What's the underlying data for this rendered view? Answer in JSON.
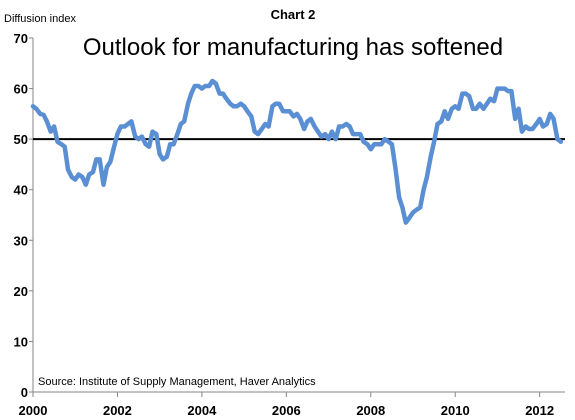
{
  "chart_data": {
    "type": "line",
    "label": "Chart 2",
    "title": "Outlook for manufacturing has softened",
    "ylabel": "Diffusion index",
    "source": "Source: Institute of Supply Management, Haver Analytics",
    "ylim": [
      0,
      70
    ],
    "yticks": [
      0,
      10,
      20,
      30,
      40,
      50,
      60,
      70
    ],
    "xlim": [
      2000,
      2012.6
    ],
    "xticks": [
      2000,
      2002,
      2004,
      2006,
      2008,
      2010,
      2012
    ],
    "reference_line": 50,
    "series_color": "#5B8FD4",
    "reference_color": "#000000",
    "grid": false,
    "series": [
      {
        "x": [
          2000.0,
          2000.08,
          2000.17,
          2000.25,
          2000.33,
          2000.42,
          2000.5,
          2000.58,
          2000.67,
          2000.75,
          2000.83,
          2000.92,
          2001.0,
          2001.08,
          2001.17,
          2001.25,
          2001.33,
          2001.42,
          2001.5,
          2001.58,
          2001.67,
          2001.75,
          2001.83,
          2001.92,
          2002.0,
          2002.08,
          2002.17,
          2002.25,
          2002.33,
          2002.42,
          2002.5,
          2002.58,
          2002.67,
          2002.75,
          2002.83,
          2002.92,
          2003.0,
          2003.08,
          2003.17,
          2003.25,
          2003.33,
          2003.42,
          2003.5,
          2003.58,
          2003.67,
          2003.75,
          2003.83,
          2003.92,
          2004.0,
          2004.08,
          2004.17,
          2004.25,
          2004.33,
          2004.42,
          2004.5,
          2004.58,
          2004.67,
          2004.75,
          2004.83,
          2004.92,
          2005.0,
          2005.08,
          2005.17,
          2005.25,
          2005.33,
          2005.42,
          2005.5,
          2005.58,
          2005.67,
          2005.75,
          2005.83,
          2005.92,
          2006.0,
          2006.08,
          2006.17,
          2006.25,
          2006.33,
          2006.42,
          2006.5,
          2006.58,
          2006.67,
          2006.75,
          2006.83,
          2006.92,
          2007.0,
          2007.08,
          2007.17,
          2007.25,
          2007.33,
          2007.42,
          2007.5,
          2007.58,
          2007.67,
          2007.75,
          2007.83,
          2007.92,
          2008.0,
          2008.08,
          2008.17,
          2008.25,
          2008.33,
          2008.42,
          2008.5,
          2008.58,
          2008.67,
          2008.75,
          2008.83,
          2008.92,
          2009.0,
          2009.08,
          2009.17,
          2009.25,
          2009.33,
          2009.42,
          2009.5,
          2009.58,
          2009.67,
          2009.75,
          2009.83,
          2009.92,
          2010.0,
          2010.08,
          2010.17,
          2010.25,
          2010.33,
          2010.42,
          2010.5,
          2010.58,
          2010.67,
          2010.75,
          2010.83,
          2010.92,
          2011.0,
          2011.08,
          2011.17,
          2011.25,
          2011.33,
          2011.42,
          2011.5,
          2011.58,
          2011.67,
          2011.75,
          2011.83,
          2011.92,
          2012.0,
          2012.08,
          2012.17,
          2012.25,
          2012.33,
          2012.42,
          2012.5
        ],
        "values": [
          56.5,
          56.0,
          55.0,
          54.8,
          53.5,
          51.5,
          52.5,
          49.5,
          49.0,
          48.5,
          44.0,
          42.5,
          42.0,
          43.0,
          42.5,
          41.0,
          43.0,
          43.5,
          46.0,
          46.0,
          41.0,
          44.5,
          45.5,
          48.5,
          51.0,
          52.5,
          52.5,
          53.0,
          53.5,
          50.5,
          50.0,
          50.5,
          49.0,
          48.5,
          51.5,
          51.0,
          47.0,
          46.0,
          46.5,
          49.0,
          49.0,
          51.0,
          53.0,
          53.5,
          57.0,
          59.0,
          60.5,
          60.5,
          60.0,
          60.5,
          60.5,
          61.5,
          61.0,
          59.0,
          59.0,
          58.0,
          57.0,
          56.5,
          56.5,
          57.0,
          56.5,
          55.5,
          54.5,
          51.5,
          51.0,
          52.0,
          53.0,
          52.5,
          56.5,
          57.0,
          57.0,
          55.5,
          55.5,
          55.5,
          54.5,
          55.0,
          54.0,
          52.0,
          53.5,
          54.0,
          52.5,
          51.5,
          50.5,
          51.0,
          50.0,
          51.5,
          50.0,
          52.5,
          52.5,
          53.0,
          52.5,
          51.0,
          51.0,
          51.0,
          49.5,
          49.0,
          48.0,
          49.0,
          49.0,
          49.0,
          50.0,
          49.5,
          49.0,
          44.5,
          38.5,
          36.5,
          33.5,
          34.5,
          35.5,
          36.0,
          36.5,
          40.0,
          42.5,
          46.5,
          49.5,
          53.0,
          53.5,
          55.5,
          54.0,
          56.0,
          56.5,
          56.0,
          59.0,
          59.0,
          58.5,
          56.0,
          56.0,
          57.0,
          56.0,
          57.0,
          58.0,
          57.5,
          60.0,
          60.0,
          60.0,
          59.5,
          59.5,
          54.0,
          56.0,
          51.5,
          52.5,
          52.0,
          52.0,
          53.0,
          54.0,
          52.5,
          53.0,
          55.0,
          54.0,
          50.0,
          49.5
        ]
      }
    ]
  }
}
